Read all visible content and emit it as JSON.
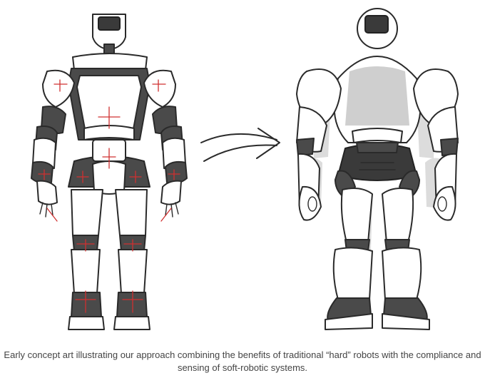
{
  "figure": {
    "caption": "Early concept art illustrating our approach combining the benefits of traditional “hard” robots with the compliance and sensing of soft-robotic systems.",
    "arrow_icon": "right-arrow-icon",
    "colors": {
      "ink": "#2a2a2a",
      "accent": "#d03030",
      "ghost": "#dcdcdc"
    }
  }
}
